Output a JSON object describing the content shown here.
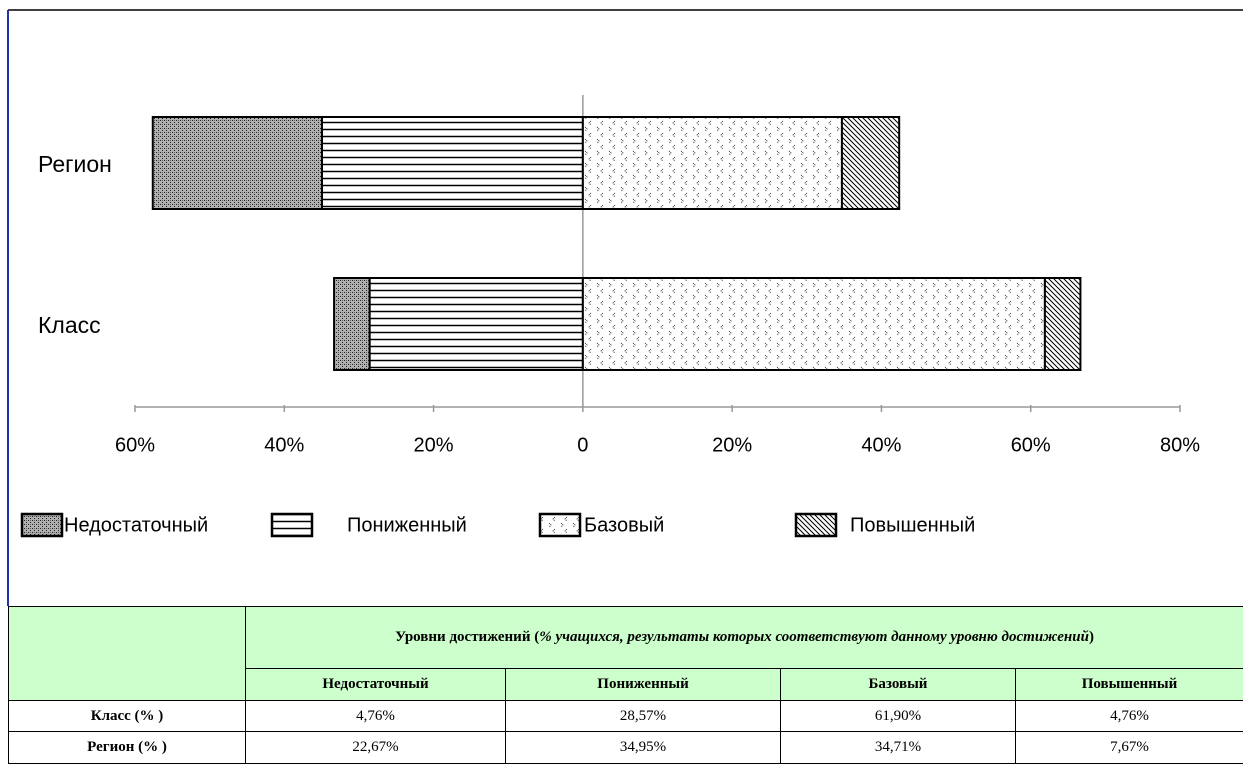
{
  "chart_data": {
    "type": "bar",
    "orientation": "horizontal",
    "stacked": true,
    "categories": [
      "Регион",
      "Класс"
    ],
    "series": [
      {
        "name": "Недостаточный",
        "values": [
          -22.67,
          -4.76
        ]
      },
      {
        "name": "Пониженный",
        "values": [
          -34.95,
          -28.57
        ]
      },
      {
        "name": "Базовый",
        "values": [
          34.71,
          61.9
        ]
      },
      {
        "name": "Повышенный",
        "values": [
          7.67,
          4.76
        ]
      }
    ],
    "xlim": [
      -60,
      80
    ],
    "xticks": [
      {
        "value": -60,
        "label": "60%"
      },
      {
        "value": -40,
        "label": "40%"
      },
      {
        "value": -20,
        "label": "20%"
      },
      0,
      {
        "value": 20,
        "label": "20%"
      },
      {
        "value": 40,
        "label": "40%"
      },
      {
        "value": 60,
        "label": "60%"
      },
      {
        "value": 80,
        "label": "80%"
      }
    ],
    "legend": "bottom"
  },
  "table": {
    "title": [
      "Уровни достижений (",
      "% учащихся, результаты которых соответствуют данному уровню достижений",
      ")"
    ],
    "columns": [
      "Недостаточный",
      "Пониженный",
      "Базовый",
      "Повышенный"
    ],
    "rows": [
      [
        "Класс (% )",
        "4,76%",
        "28,57%",
        "61,90%",
        "4,76%"
      ],
      [
        "Регион (% )",
        "22,67%",
        "34,95%",
        "34,71%",
        "7,67%"
      ]
    ]
  }
}
